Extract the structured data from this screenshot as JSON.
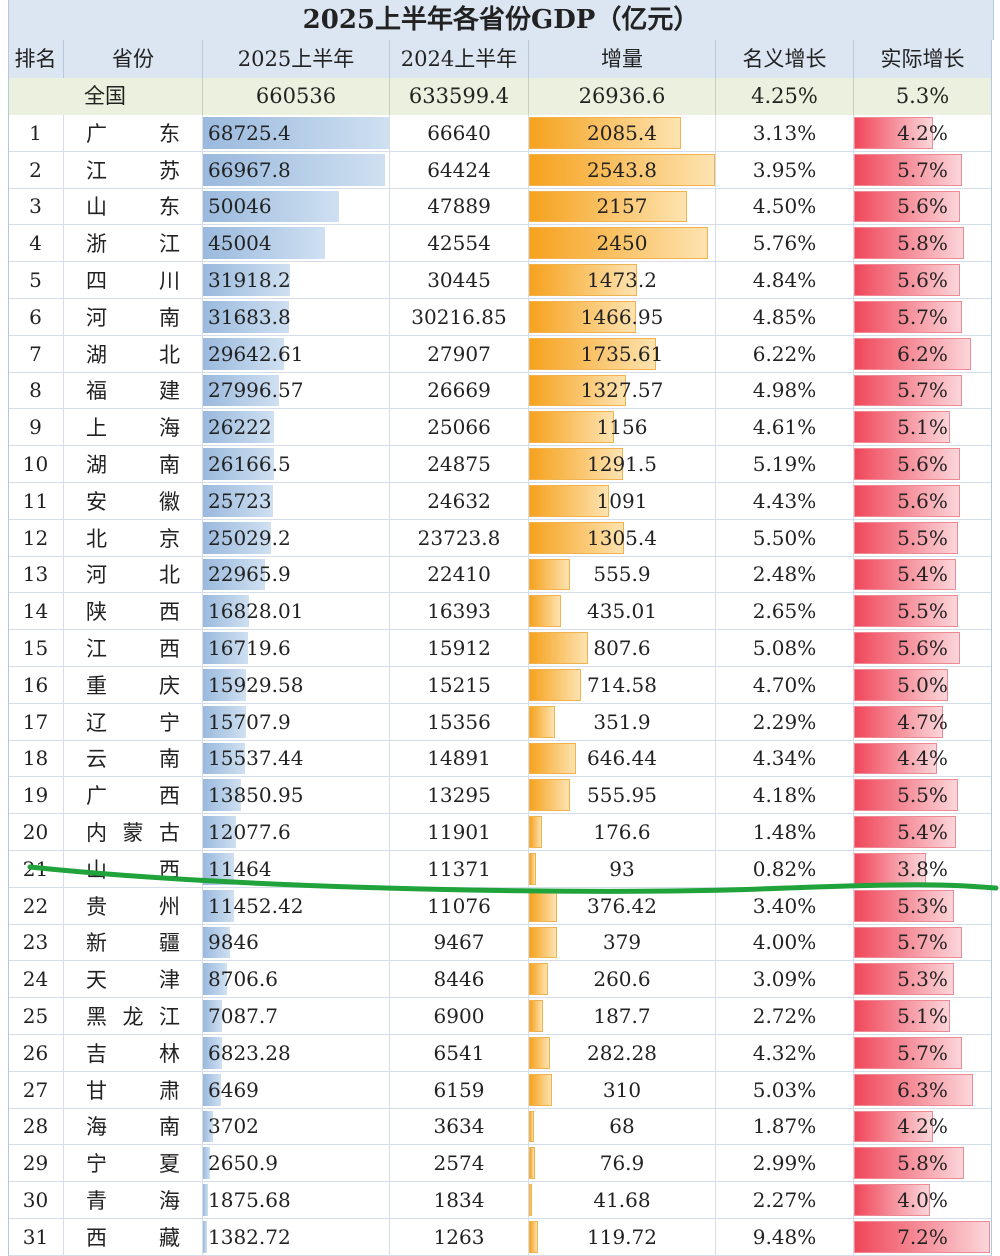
{
  "chart_data": {
    "type": "table",
    "title": "2025上半年各省份GDP（亿元）",
    "headers": [
      "排名",
      "省份",
      "2025上半年",
      "2024上半年",
      "增量",
      "名义增长",
      "实际增长"
    ],
    "national": {
      "label": "全国",
      "gdp2025": "660536",
      "gdp2024": "633599.4",
      "increase": "26936.6",
      "nominal": "4.25%",
      "real": "5.3%"
    },
    "rows": [
      {
        "rank": "1",
        "province": "广东",
        "gdp2025": "68725.4",
        "gdp2024": "66640",
        "increase": "2085.4",
        "nominal": "3.13%",
        "real": "4.2%"
      },
      {
        "rank": "2",
        "province": "江苏",
        "gdp2025": "66967.8",
        "gdp2024": "64424",
        "increase": "2543.8",
        "nominal": "3.95%",
        "real": "5.7%"
      },
      {
        "rank": "3",
        "province": "山东",
        "gdp2025": "50046",
        "gdp2024": "47889",
        "increase": "2157",
        "nominal": "4.50%",
        "real": "5.6%"
      },
      {
        "rank": "4",
        "province": "浙江",
        "gdp2025": "45004",
        "gdp2024": "42554",
        "increase": "2450",
        "nominal": "5.76%",
        "real": "5.8%"
      },
      {
        "rank": "5",
        "province": "四川",
        "gdp2025": "31918.2",
        "gdp2024": "30445",
        "increase": "1473.2",
        "nominal": "4.84%",
        "real": "5.6%"
      },
      {
        "rank": "6",
        "province": "河南",
        "gdp2025": "31683.8",
        "gdp2024": "30216.85",
        "increase": "1466.95",
        "nominal": "4.85%",
        "real": "5.7%"
      },
      {
        "rank": "7",
        "province": "湖北",
        "gdp2025": "29642.61",
        "gdp2024": "27907",
        "increase": "1735.61",
        "nominal": "6.22%",
        "real": "6.2%"
      },
      {
        "rank": "8",
        "province": "福建",
        "gdp2025": "27996.57",
        "gdp2024": "26669",
        "increase": "1327.57",
        "nominal": "4.98%",
        "real": "5.7%"
      },
      {
        "rank": "9",
        "province": "上海",
        "gdp2025": "26222",
        "gdp2024": "25066",
        "increase": "1156",
        "nominal": "4.61%",
        "real": "5.1%"
      },
      {
        "rank": "10",
        "province": "湖南",
        "gdp2025": "26166.5",
        "gdp2024": "24875",
        "increase": "1291.5",
        "nominal": "5.19%",
        "real": "5.6%"
      },
      {
        "rank": "11",
        "province": "安徽",
        "gdp2025": "25723",
        "gdp2024": "24632",
        "increase": "1091",
        "nominal": "4.43%",
        "real": "5.6%"
      },
      {
        "rank": "12",
        "province": "北京",
        "gdp2025": "25029.2",
        "gdp2024": "23723.8",
        "increase": "1305.4",
        "nominal": "5.50%",
        "real": "5.5%"
      },
      {
        "rank": "13",
        "province": "河北",
        "gdp2025": "22965.9",
        "gdp2024": "22410",
        "increase": "555.9",
        "nominal": "2.48%",
        "real": "5.4%"
      },
      {
        "rank": "14",
        "province": "陕西",
        "gdp2025": "16828.01",
        "gdp2024": "16393",
        "increase": "435.01",
        "nominal": "2.65%",
        "real": "5.5%"
      },
      {
        "rank": "15",
        "province": "江西",
        "gdp2025": "16719.6",
        "gdp2024": "15912",
        "increase": "807.6",
        "nominal": "5.08%",
        "real": "5.6%"
      },
      {
        "rank": "16",
        "province": "重庆",
        "gdp2025": "15929.58",
        "gdp2024": "15215",
        "increase": "714.58",
        "nominal": "4.70%",
        "real": "5.0%"
      },
      {
        "rank": "17",
        "province": "辽宁",
        "gdp2025": "15707.9",
        "gdp2024": "15356",
        "increase": "351.9",
        "nominal": "2.29%",
        "real": "4.7%"
      },
      {
        "rank": "18",
        "province": "云南",
        "gdp2025": "15537.44",
        "gdp2024": "14891",
        "increase": "646.44",
        "nominal": "4.34%",
        "real": "4.4%"
      },
      {
        "rank": "19",
        "province": "广西",
        "gdp2025": "13850.95",
        "gdp2024": "13295",
        "increase": "555.95",
        "nominal": "4.18%",
        "real": "5.5%"
      },
      {
        "rank": "20",
        "province": "内蒙古",
        "gdp2025": "12077.6",
        "gdp2024": "11901",
        "increase": "176.6",
        "nominal": "1.48%",
        "real": "5.4%"
      },
      {
        "rank": "21",
        "province": "山西",
        "gdp2025": "11464",
        "gdp2024": "11371",
        "increase": "93",
        "nominal": "0.82%",
        "real": "3.8%"
      },
      {
        "rank": "22",
        "province": "贵州",
        "gdp2025": "11452.42",
        "gdp2024": "11076",
        "increase": "376.42",
        "nominal": "3.40%",
        "real": "5.3%"
      },
      {
        "rank": "23",
        "province": "新疆",
        "gdp2025": "9846",
        "gdp2024": "9467",
        "increase": "379",
        "nominal": "4.00%",
        "real": "5.7%"
      },
      {
        "rank": "24",
        "province": "天津",
        "gdp2025": "8706.6",
        "gdp2024": "8446",
        "increase": "260.6",
        "nominal": "3.09%",
        "real": "5.3%"
      },
      {
        "rank": "25",
        "province": "黑龙江",
        "gdp2025": "7087.7",
        "gdp2024": "6900",
        "increase": "187.7",
        "nominal": "2.72%",
        "real": "5.1%"
      },
      {
        "rank": "26",
        "province": "吉林",
        "gdp2025": "6823.28",
        "gdp2024": "6541",
        "increase": "282.28",
        "nominal": "4.32%",
        "real": "5.7%"
      },
      {
        "rank": "27",
        "province": "甘肃",
        "gdp2025": "6469",
        "gdp2024": "6159",
        "increase": "310",
        "nominal": "5.03%",
        "real": "6.3%"
      },
      {
        "rank": "28",
        "province": "海南",
        "gdp2025": "3702",
        "gdp2024": "3634",
        "increase": "68",
        "nominal": "1.87%",
        "real": "4.2%"
      },
      {
        "rank": "29",
        "province": "宁夏",
        "gdp2025": "2650.9",
        "gdp2024": "2574",
        "increase": "76.9",
        "nominal": "2.99%",
        "real": "5.8%"
      },
      {
        "rank": "30",
        "province": "青海",
        "gdp2025": "1875.68",
        "gdp2024": "1834",
        "increase": "41.68",
        "nominal": "2.27%",
        "real": "4.0%"
      },
      {
        "rank": "31",
        "province": "西藏",
        "gdp2025": "1382.72",
        "gdp2024": "1263",
        "increase": "119.72",
        "nominal": "9.48%",
        "real": "7.2%"
      }
    ],
    "bar_scales": {
      "gdp2025_max": 68725.4,
      "increase_max": 2543.8,
      "real_min": 0,
      "real_max": 7.2
    },
    "colors": {
      "header_bg": "#dce6f2",
      "national_bg": "#ebf1de",
      "gdp_bar": "#9ab9dd",
      "increase_bar": "#f6a21e",
      "real_bar": "#f0475a",
      "cutline": "#1fa33a"
    }
  }
}
